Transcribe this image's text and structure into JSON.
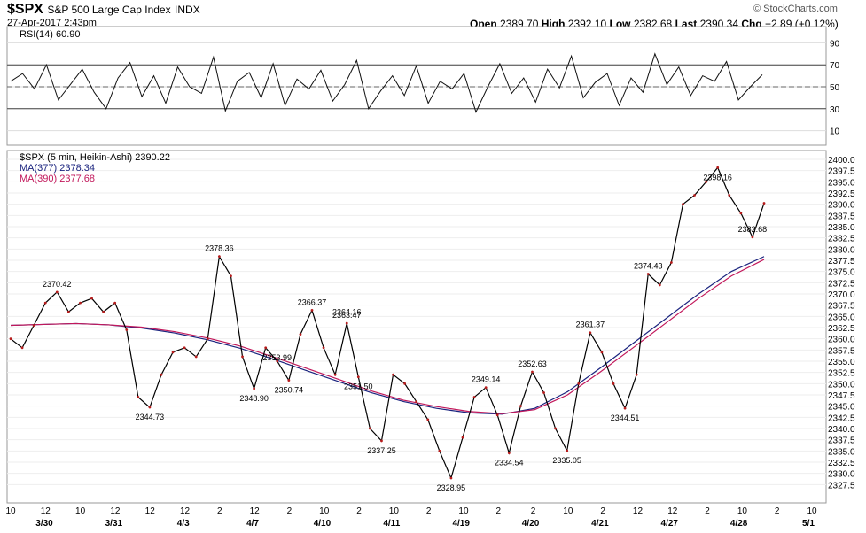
{
  "header": {
    "symbol": "$SPX",
    "name": "S&P 500 Large Cap Index",
    "exchange": "INDX",
    "date": "27-Apr-2017 2:43pm",
    "open_label": "Open",
    "open": "2389.70",
    "high_label": "High",
    "high": "2392.10",
    "low_label": "Low",
    "low": "2382.68",
    "last_label": "Last",
    "last": "2390.34",
    "chg_label": "Chg",
    "chg": "+2.89 (+0.12%)",
    "brand": "© StockCharts.com"
  },
  "rsi_panel": {
    "label": "RSI(14) 60.90",
    "overbought": 70,
    "oversold": 30,
    "ticks": [
      "90",
      "70",
      "50",
      "30",
      "10"
    ]
  },
  "price_panel": {
    "title": "$SPX (5 min, Heikin-Ashi) 2390.22",
    "ma1_label": "MA(377) 2378.34",
    "ma2_label": "MA(390) 2377.68",
    "ma1_color": "#1a237e",
    "ma2_color": "#c2185b"
  },
  "chart_data": {
    "type": "line",
    "ylim": [
      2325,
      2400
    ],
    "yticks": [
      "2400.0",
      "2397.5",
      "2395.0",
      "2392.5",
      "2390.0",
      "2387.5",
      "2385.0",
      "2382.5",
      "2380.0",
      "2377.5",
      "2375.0",
      "2372.5",
      "2370.0",
      "2367.5",
      "2365.0",
      "2362.5",
      "2360.0",
      "2357.5",
      "2355.0",
      "2352.5",
      "2350.0",
      "2347.5",
      "2345.0",
      "2342.5",
      "2340.0",
      "2337.5",
      "2335.0",
      "2332.5",
      "2330.0",
      "2327.5"
    ],
    "xticks_top": [
      "10",
      "12",
      "10",
      "12",
      "12",
      "12",
      "2",
      "12",
      "2",
      "10",
      "2",
      "10",
      "2",
      "10",
      "2",
      "2",
      "10",
      "2",
      "12",
      "12",
      "2",
      "10",
      "2",
      "10"
    ],
    "xticks_date": [
      "3/30",
      "3/31",
      "4/3",
      "4/7",
      "4/10",
      "4/11",
      "4/19",
      "4/20",
      "4/21",
      "4/27",
      "4/28",
      "5/1"
    ],
    "price": [
      2360,
      2358,
      2363,
      2368,
      2370.42,
      2366,
      2368,
      2369,
      2366,
      2368,
      2362,
      2347,
      2344.73,
      2352,
      2357,
      2358,
      2356,
      2360,
      2378.36,
      2374,
      2356,
      2348.9,
      2358,
      2355,
      2350.74,
      2361,
      2366.37,
      2358,
      2352,
      2363.47,
      2351.5,
      2340,
      2337.25,
      2352,
      2350,
      2346,
      2342,
      2335,
      2328.95,
      2338,
      2347,
      2349.14,
      2343,
      2334.54,
      2345,
      2352.63,
      2348,
      2340,
      2335.05,
      2350,
      2361.37,
      2357,
      2350,
      2344.51,
      2352,
      2374.43,
      2372,
      2377,
      2390,
      2392,
      2395,
      2398.16,
      2392,
      2388,
      2382.68,
      2390.22
    ],
    "ma377": [
      2363,
      2363.2,
      2363.4,
      2363.1,
      2362.4,
      2361.3,
      2359.8,
      2357.9,
      2355.5,
      2353,
      2350.5,
      2348,
      2346,
      2344.5,
      2343.5,
      2343.2,
      2344.5,
      2348.2,
      2353.5,
      2359,
      2364.5,
      2370,
      2375,
      2378.34
    ],
    "ma390": [
      2363,
      2363.2,
      2363.4,
      2363.1,
      2362.6,
      2361.6,
      2360.2,
      2358.4,
      2356,
      2353.5,
      2351,
      2348.4,
      2346.3,
      2344.9,
      2343.8,
      2343.3,
      2344.2,
      2347.5,
      2352.6,
      2358,
      2363.5,
      2369,
      2374,
      2377.68
    ],
    "rsi": [
      55,
      62,
      48,
      70,
      38,
      52,
      66,
      45,
      30,
      58,
      72,
      41,
      60,
      35,
      68,
      50,
      44,
      77,
      28,
      55,
      63,
      40,
      71,
      33,
      57,
      48,
      65,
      37,
      52,
      74,
      30,
      46,
      60,
      42,
      69,
      35,
      55,
      48,
      62,
      27,
      50,
      71,
      44,
      58,
      36,
      66,
      49,
      78,
      40,
      54,
      62,
      33,
      58,
      45,
      80,
      52,
      68,
      42,
      60,
      55,
      73,
      38,
      50,
      61
    ],
    "annotations": [
      {
        "label": "2370.42",
        "value": 2370.42
      },
      {
        "label": "2344.73",
        "value": 2344.73
      },
      {
        "label": "2378.36",
        "value": 2378.36
      },
      {
        "label": "2348.90",
        "value": 2348.9
      },
      {
        "label": "2364.16",
        "value": 2364.16
      },
      {
        "label": "2350.74",
        "value": 2350.74
      },
      {
        "label": "2366.37",
        "value": 2366.37
      },
      {
        "label": "2351.50",
        "value": 2351.5
      },
      {
        "label": "2363.47",
        "value": 2363.47
      },
      {
        "label": "2337.25",
        "value": 2337.25
      },
      {
        "label": "2353.99",
        "value": 2353.99
      },
      {
        "label": "2328.95",
        "value": 2328.95
      },
      {
        "label": "2349.14",
        "value": 2349.14
      },
      {
        "label": "2334.54",
        "value": 2334.54
      },
      {
        "label": "2352.63",
        "value": 2352.63
      },
      {
        "label": "2335.05",
        "value": 2335.05
      },
      {
        "label": "2361.37",
        "value": 2361.37
      },
      {
        "label": "2344.51",
        "value": 2344.51
      },
      {
        "label": "2374.43",
        "value": 2374.43
      },
      {
        "label": "2398.16",
        "value": 2398.16
      },
      {
        "label": "2382.68",
        "value": 2382.68
      }
    ],
    "grid": true
  }
}
